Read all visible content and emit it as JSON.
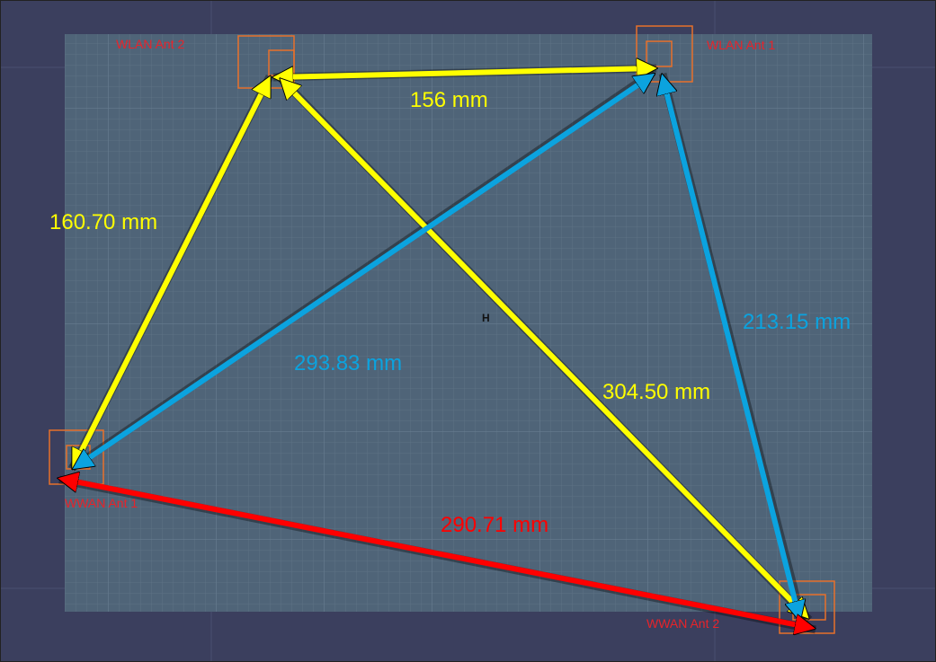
{
  "colors": {
    "background": "#3b3f5e",
    "board": "#4f6478",
    "grid": "#5f7588",
    "antenna_outline": "#e8702a",
    "antenna_label": "#e8232a",
    "yellow": "#ffff00",
    "blue": "#0ba3df",
    "red": "#ff0000"
  },
  "center_marker": "H",
  "antennas": [
    {
      "id": "wlan2",
      "label": "WLAN  Ant 2"
    },
    {
      "id": "wlan1",
      "label": "WLAN  Ant 1"
    },
    {
      "id": "wwan1",
      "label": "WWAN  Ant 1"
    },
    {
      "id": "wwan2",
      "label": "WWAN  Ant 2"
    }
  ],
  "distances": [
    {
      "from": "wlan2",
      "to": "wlan1",
      "label": "156 mm",
      "color": "yellow"
    },
    {
      "from": "wlan2",
      "to": "wwan1",
      "label": "160.70 mm",
      "color": "yellow"
    },
    {
      "from": "wlan2",
      "to": "wwan2",
      "label": "304.50 mm",
      "color": "yellow"
    },
    {
      "from": "wlan1",
      "to": "wwan1",
      "label": "293.83 mm",
      "color": "blue"
    },
    {
      "from": "wlan1",
      "to": "wwan2",
      "label": "213.15 mm",
      "color": "blue"
    },
    {
      "from": "wwan1",
      "to": "wwan2",
      "label": "290.71 mm",
      "color": "red"
    }
  ]
}
